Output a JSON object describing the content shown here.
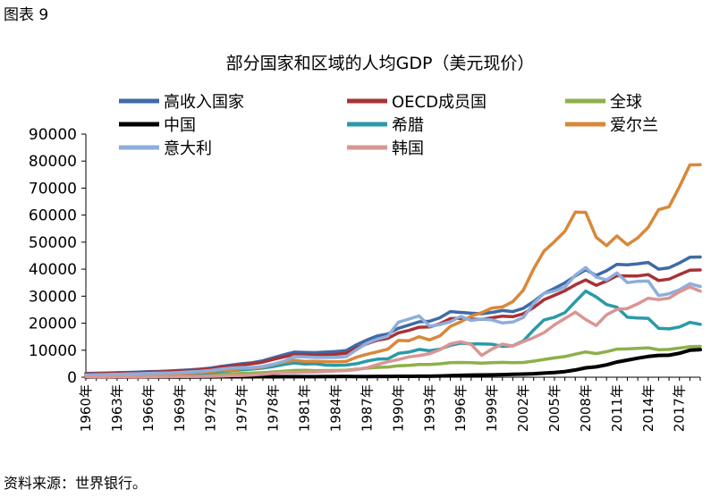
{
  "figure_label": "图表 9",
  "source_note": "资料来源：世界银行。",
  "chart_data": {
    "type": "line",
    "title": "部分国家和区域的人均GDP（美元现价）",
    "xlabel": "",
    "ylabel": "",
    "ylim": [
      0,
      90000
    ],
    "yticks": [
      0,
      10000,
      20000,
      30000,
      40000,
      50000,
      60000,
      70000,
      80000,
      90000
    ],
    "x_tick_labels": [
      "1960年",
      "1963年",
      "1966年",
      "1969年",
      "1972年",
      "1975年",
      "1978年",
      "1981年",
      "1984年",
      "1987年",
      "1990年",
      "1993年",
      "1996年",
      "1999年",
      "2002年",
      "2005年",
      "2008年",
      "2011年",
      "2014年",
      "2017年"
    ],
    "grid": false,
    "legend": "top",
    "x": [
      1960,
      1961,
      1962,
      1963,
      1964,
      1965,
      1966,
      1967,
      1968,
      1969,
      1970,
      1971,
      1972,
      1973,
      1974,
      1975,
      1976,
      1977,
      1978,
      1979,
      1980,
      1981,
      1982,
      1983,
      1984,
      1985,
      1986,
      1987,
      1988,
      1989,
      1990,
      1991,
      1992,
      1993,
      1994,
      1995,
      1996,
      1997,
      1998,
      1999,
      2000,
      2001,
      2002,
      2003,
      2004,
      2005,
      2006,
      2007,
      2008,
      2009,
      2010,
      2011,
      2012,
      2013,
      2014,
      2015,
      2016,
      2017,
      2018,
      2019
    ],
    "series": [
      {
        "name": "高收入国家",
        "color": "#3f6aa6",
        "values": [
          1400,
          1500,
          1600,
          1700,
          1800,
          1900,
          2050,
          2150,
          2300,
          2500,
          2750,
          3000,
          3400,
          4000,
          4500,
          5000,
          5400,
          6100,
          7200,
          8300,
          9300,
          9200,
          9100,
          9300,
          9500,
          9900,
          12000,
          13800,
          15300,
          16000,
          18100,
          19300,
          20500,
          20700,
          22000,
          24300,
          24000,
          23700,
          23500,
          24000,
          24700,
          24300,
          25500,
          28000,
          31000,
          32900,
          34900,
          37500,
          39800,
          37700,
          39400,
          41800,
          41600,
          42000,
          42500,
          40000,
          40500,
          42300,
          44400,
          44500
        ]
      },
      {
        "name": "OECD成员国",
        "color": "#a83236",
        "values": [
          1200,
          1300,
          1400,
          1500,
          1600,
          1700,
          1850,
          1950,
          2100,
          2300,
          2500,
          2800,
          3100,
          3700,
          4100,
          4600,
          5000,
          5600,
          6600,
          7500,
          8400,
          8300,
          8200,
          8300,
          8500,
          8900,
          10800,
          12400,
          13700,
          14400,
          16400,
          17300,
          18500,
          18600,
          19800,
          21700,
          21800,
          21500,
          21400,
          22000,
          22600,
          22400,
          23500,
          25800,
          28700,
          30300,
          32000,
          34200,
          36000,
          34000,
          35600,
          37600,
          37500,
          37500,
          38000,
          35800,
          36300,
          38000,
          39600,
          39700
        ]
      },
      {
        "name": "全球",
        "color": "#8db04a",
        "values": [
          450,
          460,
          480,
          510,
          550,
          590,
          630,
          660,
          690,
          750,
          800,
          870,
          960,
          1140,
          1300,
          1430,
          1530,
          1700,
          1950,
          2230,
          2520,
          2560,
          2450,
          2470,
          2500,
          2600,
          2980,
          3330,
          3640,
          3770,
          4250,
          4400,
          4700,
          4700,
          4950,
          5400,
          5450,
          5400,
          5200,
          5350,
          5500,
          5350,
          5450,
          5950,
          6600,
          7150,
          7650,
          8550,
          9350,
          8750,
          9450,
          10400,
          10500,
          10700,
          10900,
          10200,
          10300,
          10800,
          11300,
          11400
        ]
      },
      {
        "name": "中国",
        "color": "#000000",
        "values": [
          90,
          75,
          70,
          75,
          85,
          98,
          104,
          96,
          91,
          100,
          112,
          118,
          132,
          157,
          160,
          178,
          165,
          185,
          156,
          183,
          195,
          197,
          203,
          225,
          250,
          294,
          281,
          251,
          283,
          310,
          318,
          333,
          366,
          377,
          473,
          610,
          709,
          782,
          829,
          873,
          959,
          1053,
          1149,
          1289,
          1509,
          1753,
          2099,
          2694,
          3468,
          3832,
          4550,
          5618,
          6317,
          7051,
          7679,
          8067,
          8148,
          8879,
          9977,
          10217
        ]
      },
      {
        "name": "希腊",
        "color": "#2a9aa7",
        "values": [
          520,
          560,
          600,
          660,
          730,
          810,
          890,
          970,
          1020,
          1140,
          1300,
          1450,
          1680,
          2150,
          2500,
          2760,
          3000,
          3370,
          3980,
          4700,
          5300,
          4900,
          5000,
          4500,
          4400,
          4500,
          5000,
          6000,
          6700,
          6800,
          8800,
          9300,
          10300,
          9800,
          10400,
          11800,
          12600,
          12300,
          12300,
          12200,
          11400,
          11600,
          13400,
          17500,
          21200,
          22200,
          23900,
          28000,
          31900,
          29700,
          26900,
          25900,
          22200,
          21900,
          21800,
          18100,
          17900,
          18600,
          20300,
          19600
        ]
      },
      {
        "name": "爱尔兰",
        "color": "#d8883a",
        "values": [
          690,
          750,
          810,
          870,
          950,
          1030,
          1100,
          1170,
          1260,
          1420,
          1550,
          1730,
          2100,
          2500,
          2600,
          3200,
          3300,
          3800,
          4700,
          5600,
          6300,
          5900,
          5900,
          5800,
          5700,
          5900,
          7400,
          8500,
          9400,
          10400,
          13600,
          13500,
          15000,
          13800,
          15300,
          18800,
          20500,
          22600,
          23900,
          25600,
          26000,
          28000,
          32200,
          40100,
          46700,
          50200,
          54000,
          61100,
          61000,
          51800,
          48700,
          52300,
          49000,
          51600,
          55500,
          62000,
          63100,
          70500,
          78600,
          78700
        ]
      },
      {
        "name": "意大利",
        "color": "#8eaedb",
        "values": [
          800,
          900,
          1000,
          1100,
          1200,
          1300,
          1400,
          1500,
          1600,
          1750,
          2000,
          2200,
          2500,
          3000,
          3400,
          3600,
          3600,
          4000,
          4800,
          5900,
          7600,
          7500,
          7300,
          7300,
          7300,
          7600,
          10200,
          12600,
          14100,
          15200,
          20300,
          21500,
          22700,
          18900,
          19500,
          20500,
          22500,
          21000,
          21500,
          21200,
          20100,
          20400,
          22100,
          27300,
          31000,
          31900,
          33400,
          37800,
          40600,
          37100,
          36000,
          38600,
          35000,
          35500,
          35600,
          30200,
          30900,
          32400,
          34600,
          33600
        ]
      },
      {
        "name": "韩国",
        "color": "#d99694",
        "values": [
          158,
          93,
          106,
          146,
          124,
          109,
          133,
          161,
          198,
          243,
          279,
          301,
          323,
          406,
          564,
          617,
          834,
          1055,
          1405,
          1783,
          1704,
          1870,
          1939,
          2119,
          2309,
          2457,
          2803,
          3510,
          4687,
          5737,
          6516,
          7523,
          8001,
          8741,
          10206,
          12333,
          13138,
          12131,
          8085,
          10409,
          12257,
          11561,
          13165,
          14673,
          16496,
          19403,
          21743,
          24086,
          21350,
          19144,
          23087,
          25100,
          25459,
          27180,
          29253,
          28737,
          29274,
          31601,
          33423,
          31846
        ]
      }
    ]
  }
}
